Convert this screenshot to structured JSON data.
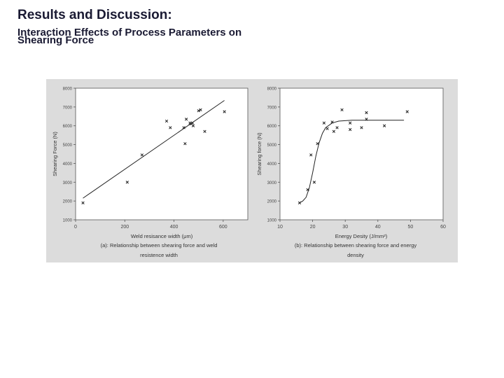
{
  "slide": {
    "title": "Results and Discussion:",
    "subtitle_line1": "Interaction Effects of Process Parameters on",
    "subtitle_line2": "Shearing Force"
  },
  "chart_data": [
    {
      "type": "scatter",
      "xlabel": "Weld resisance width (μm)",
      "ylabel": "Shearing Force (N)",
      "caption_line1": "(a): Relationship between shearing force and weld",
      "caption_line2": "resistence width",
      "xlim": [
        0,
        700
      ],
      "ylim": [
        1000,
        8000
      ],
      "x_ticks": [
        "0",
        "200",
        "400",
        "600"
      ],
      "y_ticks": [
        "1000",
        "2000",
        "3000",
        "4000",
        "5000",
        "6000",
        "7000",
        "8000"
      ],
      "marker_color": "#222222",
      "points": [
        {
          "x": 30,
          "y": 1900
        },
        {
          "x": 210,
          "y": 3000
        },
        {
          "x": 270,
          "y": 4450
        },
        {
          "x": 370,
          "y": 6250
        },
        {
          "x": 385,
          "y": 5900
        },
        {
          "x": 440,
          "y": 5900
        },
        {
          "x": 445,
          "y": 5050
        },
        {
          "x": 450,
          "y": 6350
        },
        {
          "x": 465,
          "y": 6150
        },
        {
          "x": 470,
          "y": 6100
        },
        {
          "x": 475,
          "y": 6150
        },
        {
          "x": 478,
          "y": 6000
        },
        {
          "x": 500,
          "y": 6800
        },
        {
          "x": 508,
          "y": 6850
        },
        {
          "x": 525,
          "y": 5700
        },
        {
          "x": 605,
          "y": 6750
        }
      ],
      "fit_line": [
        {
          "x": 30,
          "y": 2150
        },
        {
          "x": 605,
          "y": 7350
        }
      ]
    },
    {
      "type": "scatter",
      "xlabel": "Energy Desity (J/mm²)",
      "ylabel": "Shearing force (N)",
      "caption_line1": "(b): Relationship between shearing force and energy",
      "caption_line2": "density",
      "xlim": [
        10,
        60
      ],
      "ylim": [
        1000,
        8000
      ],
      "x_ticks": [
        "10",
        "20",
        "30",
        "40",
        "50",
        "60"
      ],
      "y_ticks": [
        "1000",
        "2000",
        "3000",
        "4000",
        "5000",
        "6000",
        "7000",
        "8000"
      ],
      "marker_color": "#222222",
      "points": [
        {
          "x": 16,
          "y": 1900
        },
        {
          "x": 18.5,
          "y": 2600
        },
        {
          "x": 19.5,
          "y": 4450
        },
        {
          "x": 20.5,
          "y": 3000
        },
        {
          "x": 21.5,
          "y": 5050
        },
        {
          "x": 23.5,
          "y": 6150
        },
        {
          "x": 24.5,
          "y": 5850
        },
        {
          "x": 26,
          "y": 6200
        },
        {
          "x": 26.5,
          "y": 5700
        },
        {
          "x": 27.5,
          "y": 5900
        },
        {
          "x": 29,
          "y": 6850
        },
        {
          "x": 31.5,
          "y": 6150
        },
        {
          "x": 31.5,
          "y": 5800
        },
        {
          "x": 35,
          "y": 5900
        },
        {
          "x": 36.5,
          "y": 6700
        },
        {
          "x": 36.5,
          "y": 6350
        },
        {
          "x": 42,
          "y": 6000
        },
        {
          "x": 49,
          "y": 6750
        }
      ],
      "fit_curve": [
        {
          "x": 16,
          "y": 1900
        },
        {
          "x": 17,
          "y": 2000
        },
        {
          "x": 18,
          "y": 2200
        },
        {
          "x": 19,
          "y": 2700
        },
        {
          "x": 20,
          "y": 3500
        },
        {
          "x": 21,
          "y": 4400
        },
        {
          "x": 22,
          "y": 5100
        },
        {
          "x": 23,
          "y": 5600
        },
        {
          "x": 24,
          "y": 5900
        },
        {
          "x": 26,
          "y": 6150
        },
        {
          "x": 28,
          "y": 6250
        },
        {
          "x": 32,
          "y": 6300
        },
        {
          "x": 40,
          "y": 6300
        },
        {
          "x": 48,
          "y": 6300
        }
      ]
    }
  ]
}
